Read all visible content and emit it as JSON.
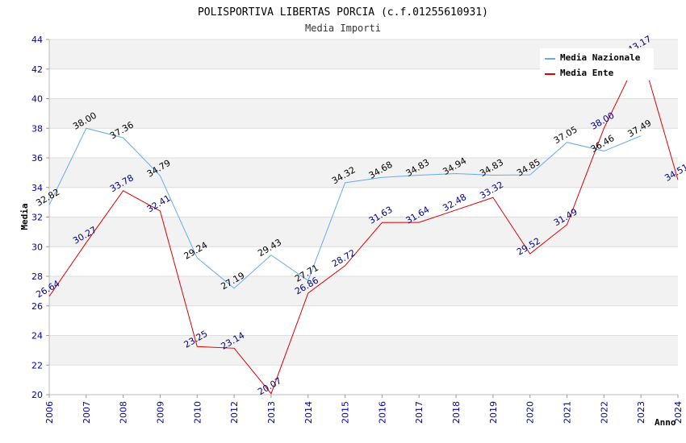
{
  "chart_data": {
    "type": "line",
    "title": "POLISPORTIVA LIBERTAS PORCIA (c.f.01255610931)",
    "subtitle": "Media Importi",
    "xlabel": "Anno",
    "ylabel": "Media",
    "ylim": [
      20,
      44
    ],
    "yticks": [
      "20",
      "22",
      "24",
      "26",
      "28",
      "30",
      "32",
      "34",
      "36",
      "38",
      "40",
      "42",
      "44"
    ],
    "categories": [
      "2006",
      "2007",
      "2008",
      "2009",
      "2010",
      "2012",
      "2013",
      "2014",
      "2015",
      "2016",
      "2017",
      "2018",
      "2019",
      "2020",
      "2021",
      "2022",
      "2023",
      "2024"
    ],
    "grid": true,
    "legend_position": "top-right",
    "series": [
      {
        "name": "Media Nazionale",
        "color": "#66aaee",
        "values": [
          32.82,
          38.0,
          37.36,
          34.79,
          29.24,
          27.19,
          29.43,
          27.71,
          34.32,
          34.68,
          34.83,
          34.94,
          34.83,
          34.85,
          37.05,
          36.46,
          37.49,
          null
        ],
        "labels": [
          "32.82",
          "38.00",
          "37.36",
          "34.79",
          "29.24",
          "27.19",
          "29.43",
          "27.71",
          "34.32",
          "34.68",
          "34.83",
          "34.94",
          "34.83",
          "34.85",
          "37.05",
          "36.46",
          "37.49",
          ""
        ]
      },
      {
        "name": "Media Ente",
        "color": "#dd0000",
        "values": [
          26.64,
          30.27,
          33.78,
          32.41,
          23.25,
          23.14,
          20.07,
          26.86,
          28.72,
          31.63,
          31.64,
          32.48,
          33.32,
          29.52,
          31.49,
          38.0,
          43.17,
          34.51
        ],
        "labels": [
          "26.64",
          "30.27",
          "33.78",
          "32.41",
          "23.25",
          "23.14",
          "20.07",
          "26.86",
          "28.72",
          "31.63",
          "31.64",
          "32.48",
          "33.32",
          "29.52",
          "31.49",
          "38.00",
          "43.17",
          "34.51"
        ]
      }
    ]
  }
}
